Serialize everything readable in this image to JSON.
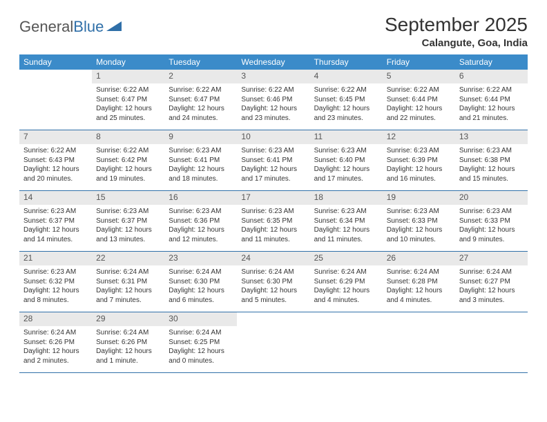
{
  "logo": {
    "text1": "General",
    "text2": "Blue"
  },
  "title": "September 2025",
  "location": "Calangute, Goa, India",
  "colors": {
    "header_bg": "#3b8bc9",
    "daynum_bg": "#e9e9e9",
    "border": "#2f6fa8",
    "logo_blue": "#2f6fa8"
  },
  "weekdays": [
    "Sunday",
    "Monday",
    "Tuesday",
    "Wednesday",
    "Thursday",
    "Friday",
    "Saturday"
  ],
  "weeks": [
    [
      null,
      {
        "n": "1",
        "sr": "Sunrise: 6:22 AM",
        "ss": "Sunset: 6:47 PM",
        "dl": "Daylight: 12 hours and 25 minutes."
      },
      {
        "n": "2",
        "sr": "Sunrise: 6:22 AM",
        "ss": "Sunset: 6:47 PM",
        "dl": "Daylight: 12 hours and 24 minutes."
      },
      {
        "n": "3",
        "sr": "Sunrise: 6:22 AM",
        "ss": "Sunset: 6:46 PM",
        "dl": "Daylight: 12 hours and 23 minutes."
      },
      {
        "n": "4",
        "sr": "Sunrise: 6:22 AM",
        "ss": "Sunset: 6:45 PM",
        "dl": "Daylight: 12 hours and 23 minutes."
      },
      {
        "n": "5",
        "sr": "Sunrise: 6:22 AM",
        "ss": "Sunset: 6:44 PM",
        "dl": "Daylight: 12 hours and 22 minutes."
      },
      {
        "n": "6",
        "sr": "Sunrise: 6:22 AM",
        "ss": "Sunset: 6:44 PM",
        "dl": "Daylight: 12 hours and 21 minutes."
      }
    ],
    [
      {
        "n": "7",
        "sr": "Sunrise: 6:22 AM",
        "ss": "Sunset: 6:43 PM",
        "dl": "Daylight: 12 hours and 20 minutes."
      },
      {
        "n": "8",
        "sr": "Sunrise: 6:22 AM",
        "ss": "Sunset: 6:42 PM",
        "dl": "Daylight: 12 hours and 19 minutes."
      },
      {
        "n": "9",
        "sr": "Sunrise: 6:23 AM",
        "ss": "Sunset: 6:41 PM",
        "dl": "Daylight: 12 hours and 18 minutes."
      },
      {
        "n": "10",
        "sr": "Sunrise: 6:23 AM",
        "ss": "Sunset: 6:41 PM",
        "dl": "Daylight: 12 hours and 17 minutes."
      },
      {
        "n": "11",
        "sr": "Sunrise: 6:23 AM",
        "ss": "Sunset: 6:40 PM",
        "dl": "Daylight: 12 hours and 17 minutes."
      },
      {
        "n": "12",
        "sr": "Sunrise: 6:23 AM",
        "ss": "Sunset: 6:39 PM",
        "dl": "Daylight: 12 hours and 16 minutes."
      },
      {
        "n": "13",
        "sr": "Sunrise: 6:23 AM",
        "ss": "Sunset: 6:38 PM",
        "dl": "Daylight: 12 hours and 15 minutes."
      }
    ],
    [
      {
        "n": "14",
        "sr": "Sunrise: 6:23 AM",
        "ss": "Sunset: 6:37 PM",
        "dl": "Daylight: 12 hours and 14 minutes."
      },
      {
        "n": "15",
        "sr": "Sunrise: 6:23 AM",
        "ss": "Sunset: 6:37 PM",
        "dl": "Daylight: 12 hours and 13 minutes."
      },
      {
        "n": "16",
        "sr": "Sunrise: 6:23 AM",
        "ss": "Sunset: 6:36 PM",
        "dl": "Daylight: 12 hours and 12 minutes."
      },
      {
        "n": "17",
        "sr": "Sunrise: 6:23 AM",
        "ss": "Sunset: 6:35 PM",
        "dl": "Daylight: 12 hours and 11 minutes."
      },
      {
        "n": "18",
        "sr": "Sunrise: 6:23 AM",
        "ss": "Sunset: 6:34 PM",
        "dl": "Daylight: 12 hours and 11 minutes."
      },
      {
        "n": "19",
        "sr": "Sunrise: 6:23 AM",
        "ss": "Sunset: 6:33 PM",
        "dl": "Daylight: 12 hours and 10 minutes."
      },
      {
        "n": "20",
        "sr": "Sunrise: 6:23 AM",
        "ss": "Sunset: 6:33 PM",
        "dl": "Daylight: 12 hours and 9 minutes."
      }
    ],
    [
      {
        "n": "21",
        "sr": "Sunrise: 6:23 AM",
        "ss": "Sunset: 6:32 PM",
        "dl": "Daylight: 12 hours and 8 minutes."
      },
      {
        "n": "22",
        "sr": "Sunrise: 6:24 AM",
        "ss": "Sunset: 6:31 PM",
        "dl": "Daylight: 12 hours and 7 minutes."
      },
      {
        "n": "23",
        "sr": "Sunrise: 6:24 AM",
        "ss": "Sunset: 6:30 PM",
        "dl": "Daylight: 12 hours and 6 minutes."
      },
      {
        "n": "24",
        "sr": "Sunrise: 6:24 AM",
        "ss": "Sunset: 6:30 PM",
        "dl": "Daylight: 12 hours and 5 minutes."
      },
      {
        "n": "25",
        "sr": "Sunrise: 6:24 AM",
        "ss": "Sunset: 6:29 PM",
        "dl": "Daylight: 12 hours and 4 minutes."
      },
      {
        "n": "26",
        "sr": "Sunrise: 6:24 AM",
        "ss": "Sunset: 6:28 PM",
        "dl": "Daylight: 12 hours and 4 minutes."
      },
      {
        "n": "27",
        "sr": "Sunrise: 6:24 AM",
        "ss": "Sunset: 6:27 PM",
        "dl": "Daylight: 12 hours and 3 minutes."
      }
    ],
    [
      {
        "n": "28",
        "sr": "Sunrise: 6:24 AM",
        "ss": "Sunset: 6:26 PM",
        "dl": "Daylight: 12 hours and 2 minutes."
      },
      {
        "n": "29",
        "sr": "Sunrise: 6:24 AM",
        "ss": "Sunset: 6:26 PM",
        "dl": "Daylight: 12 hours and 1 minute."
      },
      {
        "n": "30",
        "sr": "Sunrise: 6:24 AM",
        "ss": "Sunset: 6:25 PM",
        "dl": "Daylight: 12 hours and 0 minutes."
      },
      null,
      null,
      null,
      null
    ]
  ]
}
